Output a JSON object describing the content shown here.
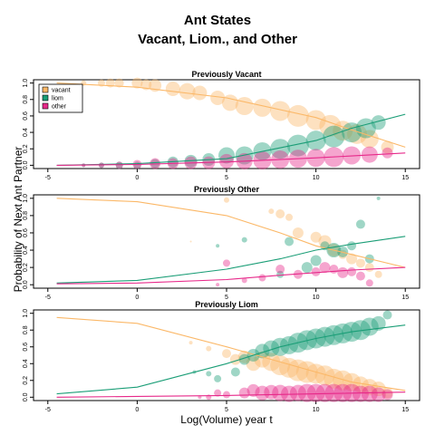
{
  "title": "Ant States",
  "subtitle": "Vacant, Liom., and Other",
  "xlabel": "Log(Volume) year t",
  "ylabel": "Probability of Next Ant Partner",
  "chart_data": [
    {
      "type": "scatter",
      "title": "Previously Vacant",
      "xlim": [
        -5,
        15
      ],
      "ylim": [
        0,
        1
      ],
      "x_ticks": [
        "-5",
        "0",
        "5",
        "10",
        "15"
      ],
      "y_ticks": [
        "0.0",
        "0.2",
        "0.4",
        "0.6",
        "0.8",
        "1.0"
      ],
      "legend": {
        "placement": "top-left",
        "entries": [
          "vacant",
          "liom",
          "other"
        ]
      },
      "series": [
        {
          "name": "vacant",
          "color": "#FBB868",
          "curve": [
            [
              -4.5,
              1.0
            ],
            [
              0,
              0.95
            ],
            [
              5,
              0.82
            ],
            [
              10,
              0.58
            ],
            [
              12,
              0.43
            ],
            [
              15,
              0.22
            ]
          ],
          "points": [
            [
              -3,
              1.0,
              3
            ],
            [
              -2,
              1.0,
              4
            ],
            [
              -1.5,
              1.0,
              5
            ],
            [
              -1,
              1.0,
              5
            ],
            [
              0,
              1.0,
              6
            ],
            [
              0.5,
              0.98,
              6
            ],
            [
              1,
              0.97,
              7
            ],
            [
              2,
              0.93,
              8
            ],
            [
              2.8,
              0.9,
              9
            ],
            [
              3.5,
              0.88,
              8
            ],
            [
              4.5,
              0.82,
              8
            ],
            [
              5.2,
              0.76,
              9
            ],
            [
              6,
              0.72,
              10
            ],
            [
              7,
              0.7,
              10
            ],
            [
              8,
              0.66,
              11
            ],
            [
              9,
              0.6,
              12
            ],
            [
              10,
              0.55,
              11
            ],
            [
              10.8,
              0.48,
              12
            ],
            [
              11.5,
              0.42,
              11
            ],
            [
              12.3,
              0.38,
              11
            ],
            [
              13,
              0.32,
              10
            ],
            [
              14,
              0.22,
              7
            ]
          ]
        },
        {
          "name": "liom",
          "color": "#1B9E77",
          "curve": [
            [
              -4.5,
              0.0
            ],
            [
              0,
              0.02
            ],
            [
              5,
              0.08
            ],
            [
              10,
              0.3
            ],
            [
              12,
              0.45
            ],
            [
              15,
              0.62
            ]
          ],
          "points": [
            [
              -3,
              0.0,
              2
            ],
            [
              -2,
              0.0,
              3
            ],
            [
              -1,
              0.0,
              4
            ],
            [
              0,
              0.0,
              4
            ],
            [
              1,
              0.02,
              5
            ],
            [
              2,
              0.04,
              6
            ],
            [
              3,
              0.05,
              7
            ],
            [
              4,
              0.07,
              7
            ],
            [
              5,
              0.12,
              9
            ],
            [
              6,
              0.12,
              10
            ],
            [
              7,
              0.17,
              10
            ],
            [
              8,
              0.2,
              11
            ],
            [
              9,
              0.24,
              12
            ],
            [
              10,
              0.3,
              11
            ],
            [
              11,
              0.35,
              12
            ],
            [
              12,
              0.4,
              11
            ],
            [
              12.8,
              0.45,
              11
            ],
            [
              13.5,
              0.52,
              8
            ]
          ]
        },
        {
          "name": "other",
          "color": "#E7298A",
          "curve": [
            [
              -4.5,
              0.0
            ],
            [
              0,
              0.01
            ],
            [
              5,
              0.04
            ],
            [
              10,
              0.09
            ],
            [
              15,
              0.15
            ]
          ],
          "points": [
            [
              -3,
              0.0,
              2
            ],
            [
              -2,
              0.0,
              3
            ],
            [
              -1,
              0.0,
              4
            ],
            [
              0,
              0.01,
              5
            ],
            [
              1,
              0.02,
              6
            ],
            [
              2,
              0.02,
              6
            ],
            [
              3,
              0.03,
              7
            ],
            [
              4,
              0.03,
              7
            ],
            [
              5,
              0.05,
              8
            ],
            [
              6,
              0.05,
              9
            ],
            [
              7,
              0.06,
              10
            ],
            [
              8,
              0.07,
              10
            ],
            [
              9,
              0.08,
              10
            ],
            [
              10,
              0.09,
              10
            ],
            [
              11,
              0.1,
              11
            ],
            [
              12,
              0.12,
              10
            ],
            [
              13,
              0.13,
              9
            ],
            [
              14,
              0.15,
              6
            ]
          ]
        }
      ]
    },
    {
      "type": "scatter",
      "title": "Previously Other",
      "xlim": [
        -5,
        15
      ],
      "ylim": [
        0,
        1
      ],
      "x_ticks": [
        "-5",
        "0",
        "5",
        "10",
        "15"
      ],
      "y_ticks": [
        "0.0",
        "0.2",
        "0.4",
        "0.6",
        "0.8",
        "1.0"
      ],
      "series": [
        {
          "name": "vacant",
          "color": "#FBB868",
          "curve": [
            [
              -4.5,
              1.0
            ],
            [
              0,
              0.96
            ],
            [
              5,
              0.8
            ],
            [
              8,
              0.6
            ],
            [
              10,
              0.45
            ],
            [
              12,
              0.35
            ],
            [
              15,
              0.2
            ]
          ],
          "points": [
            [
              3,
              0.5,
              1
            ],
            [
              5,
              0.98,
              3
            ],
            [
              7.5,
              0.85,
              3
            ],
            [
              8,
              0.82,
              5
            ],
            [
              8.5,
              0.78,
              4
            ],
            [
              9,
              0.6,
              6
            ],
            [
              10,
              0.55,
              6
            ],
            [
              10.5,
              0.5,
              7
            ],
            [
              11,
              0.4,
              7
            ],
            [
              11.5,
              0.35,
              5
            ],
            [
              12,
              0.3,
              6
            ],
            [
              12.5,
              0.25,
              5
            ],
            [
              13,
              0.2,
              5
            ],
            [
              13.5,
              0.12,
              4
            ]
          ]
        },
        {
          "name": "liom",
          "color": "#1B9E77",
          "curve": [
            [
              -4.5,
              0.02
            ],
            [
              0,
              0.05
            ],
            [
              5,
              0.18
            ],
            [
              8,
              0.3
            ],
            [
              10,
              0.4
            ],
            [
              12,
              0.47
            ],
            [
              15,
              0.56
            ]
          ],
          "points": [
            [
              4.5,
              0.45,
              2
            ],
            [
              6,
              0.52,
              3
            ],
            [
              8,
              0.12,
              4
            ],
            [
              8.5,
              0.5,
              5
            ],
            [
              9.5,
              0.2,
              6
            ],
            [
              10,
              0.28,
              6
            ],
            [
              10.5,
              0.45,
              5
            ],
            [
              11,
              0.4,
              8
            ],
            [
              11.5,
              0.38,
              6
            ],
            [
              12,
              0.45,
              5
            ],
            [
              12.5,
              0.7,
              5
            ],
            [
              13,
              0.3,
              5
            ],
            [
              13.5,
              1.0,
              2
            ]
          ]
        },
        {
          "name": "other",
          "color": "#E7298A",
          "curve": [
            [
              -4.5,
              0.01
            ],
            [
              0,
              0.02
            ],
            [
              5,
              0.06
            ],
            [
              8,
              0.11
            ],
            [
              10,
              0.14
            ],
            [
              12,
              0.17
            ],
            [
              15,
              0.2
            ]
          ],
          "points": [
            [
              4.5,
              0.0,
              2
            ],
            [
              5,
              0.25,
              4
            ],
            [
              6,
              0.05,
              3
            ],
            [
              7,
              0.08,
              4
            ],
            [
              8,
              0.18,
              5
            ],
            [
              9,
              0.12,
              5
            ],
            [
              10,
              0.15,
              5
            ],
            [
              10.5,
              0.2,
              6
            ],
            [
              11,
              0.18,
              5
            ],
            [
              11.5,
              0.14,
              6
            ],
            [
              12,
              0.15,
              5
            ],
            [
              12.5,
              0.1,
              5
            ],
            [
              13,
              0.02,
              4
            ]
          ]
        }
      ]
    },
    {
      "type": "scatter",
      "title": "Previously Liom",
      "xlim": [
        -5,
        15
      ],
      "ylim": [
        0,
        1
      ],
      "x_ticks": [
        "-5",
        "0",
        "5",
        "10",
        "15"
      ],
      "y_ticks": [
        "0.0",
        "0.2",
        "0.4",
        "0.6",
        "0.8",
        "1.0"
      ],
      "series": [
        {
          "name": "vacant",
          "color": "#FBB868",
          "curve": [
            [
              -4.5,
              0.95
            ],
            [
              0,
              0.88
            ],
            [
              5,
              0.6
            ],
            [
              8,
              0.42
            ],
            [
              10,
              0.3
            ],
            [
              12,
              0.18
            ],
            [
              15,
              0.08
            ]
          ],
          "points": [
            [
              3,
              0.65,
              2
            ],
            [
              4,
              0.58,
              3
            ],
            [
              5,
              0.52,
              5
            ],
            [
              5.5,
              0.45,
              6
            ],
            [
              6,
              0.48,
              7
            ],
            [
              6.5,
              0.4,
              8
            ],
            [
              7,
              0.45,
              9
            ],
            [
              7.5,
              0.42,
              10
            ],
            [
              8,
              0.38,
              11
            ],
            [
              8.5,
              0.35,
              11
            ],
            [
              9,
              0.32,
              12
            ],
            [
              9.5,
              0.3,
              12
            ],
            [
              10,
              0.28,
              11
            ],
            [
              10.5,
              0.26,
              11
            ],
            [
              11,
              0.22,
              11
            ],
            [
              11.5,
              0.2,
              11
            ],
            [
              12,
              0.18,
              10
            ],
            [
              12.5,
              0.15,
              9
            ],
            [
              13,
              0.12,
              9
            ],
            [
              13.5,
              0.1,
              8
            ],
            [
              14,
              0.05,
              6
            ]
          ]
        },
        {
          "name": "liom",
          "color": "#1B9E77",
          "curve": [
            [
              -4.5,
              0.04
            ],
            [
              0,
              0.12
            ],
            [
              5,
              0.4
            ],
            [
              8,
              0.6
            ],
            [
              10,
              0.7
            ],
            [
              12,
              0.78
            ],
            [
              15,
              0.86
            ]
          ],
          "points": [
            [
              3.2,
              0.3,
              2
            ],
            [
              4,
              0.28,
              3
            ],
            [
              4.5,
              0.22,
              4
            ],
            [
              5.5,
              0.3,
              5
            ],
            [
              6,
              0.45,
              6
            ],
            [
              6.5,
              0.5,
              7
            ],
            [
              7,
              0.55,
              8
            ],
            [
              7.5,
              0.58,
              9
            ],
            [
              8,
              0.6,
              10
            ],
            [
              8.5,
              0.62,
              10
            ],
            [
              9,
              0.65,
              11
            ],
            [
              9.5,
              0.68,
              11
            ],
            [
              10,
              0.7,
              11
            ],
            [
              10.5,
              0.72,
              11
            ],
            [
              11,
              0.74,
              11
            ],
            [
              11.5,
              0.76,
              11
            ],
            [
              12,
              0.78,
              11
            ],
            [
              12.5,
              0.8,
              11
            ],
            [
              13,
              0.84,
              10
            ],
            [
              13.5,
              0.88,
              8
            ],
            [
              14,
              0.98,
              5
            ]
          ]
        },
        {
          "name": "other",
          "color": "#E7298A",
          "curve": [
            [
              -4.5,
              0.0
            ],
            [
              0,
              0.01
            ],
            [
              5,
              0.02
            ],
            [
              10,
              0.04
            ],
            [
              15,
              0.06
            ]
          ],
          "points": [
            [
              3.5,
              0.0,
              2
            ],
            [
              4,
              0.0,
              3
            ],
            [
              4.5,
              0.05,
              4
            ],
            [
              5,
              0.03,
              4
            ],
            [
              6,
              0.05,
              6
            ],
            [
              6.5,
              0.08,
              7
            ],
            [
              7,
              0.05,
              8
            ],
            [
              7.5,
              0.06,
              8
            ],
            [
              8,
              0.05,
              9
            ],
            [
              8.5,
              0.04,
              9
            ],
            [
              9,
              0.05,
              9
            ],
            [
              9.5,
              0.05,
              10
            ],
            [
              10,
              0.05,
              10
            ],
            [
              10.5,
              0.05,
              10
            ],
            [
              11,
              0.05,
              10
            ],
            [
              11.5,
              0.05,
              10
            ],
            [
              12,
              0.05,
              10
            ],
            [
              12.5,
              0.04,
              9
            ],
            [
              13,
              0.04,
              9
            ],
            [
              13.5,
              0.03,
              8
            ],
            [
              14,
              0.03,
              6
            ]
          ]
        }
      ]
    }
  ]
}
